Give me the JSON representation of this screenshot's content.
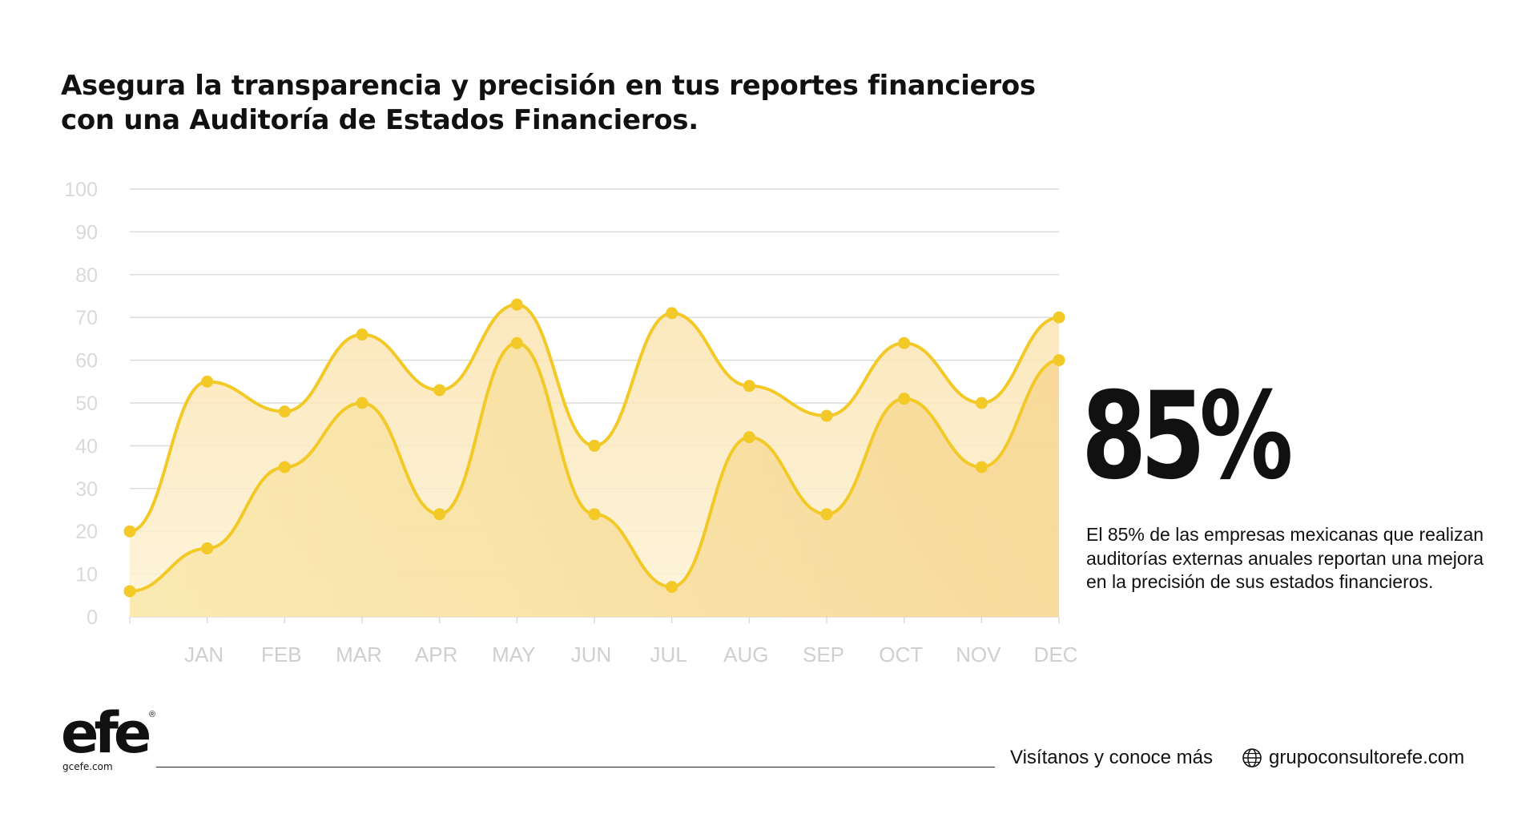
{
  "header": {
    "title_line1": "Asegura la transparencia y precisión en tus reportes financieros",
    "title_line2": "con una Auditoría de Estados Financieros."
  },
  "stat": {
    "value": "85%",
    "description": "El 85% de las empresas mexicanas que realizan auditorías externas anuales reportan una mejora en la precisión de sus estados financieros."
  },
  "footer": {
    "logo_text": "efe",
    "logo_url": "gcefe.com",
    "cta": "Visítanos y conoce más",
    "website": "grupoconsultorefe.com"
  },
  "colors": {
    "line": "#f2c926",
    "fill_upper": "#fbe9c0",
    "fill_lower": "#f8da8a",
    "grid": "#dcdcdc",
    "text": "#111111"
  },
  "icons": {
    "website": "globe-icon"
  },
  "chart_data": {
    "type": "area",
    "x_labels": [
      "",
      "JAN",
      "FEB",
      "MAR",
      "APR",
      "MAY",
      "JUN",
      "JUL",
      "AUG",
      "SEP",
      "OCT",
      "NOV",
      "DEC"
    ],
    "ylim": [
      0,
      100
    ],
    "yticks": [
      0,
      10,
      20,
      30,
      40,
      50,
      60,
      70,
      80,
      90,
      100
    ],
    "grid": true,
    "series": [
      {
        "values": [
          20,
          55,
          48,
          66,
          53,
          73,
          40,
          71,
          54,
          47,
          64,
          50,
          70
        ]
      },
      {
        "values": [
          6,
          16,
          35,
          50,
          24,
          64,
          24,
          7,
          42,
          24,
          51,
          35,
          60
        ]
      }
    ]
  }
}
